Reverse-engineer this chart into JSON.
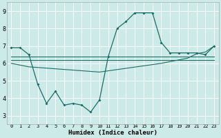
{
  "xlabel": "Humidex (Indice chaleur)",
  "xlim": [
    -0.5,
    23.5
  ],
  "ylim": [
    2.5,
    9.5
  ],
  "yticks": [
    3,
    4,
    5,
    6,
    7,
    8,
    9
  ],
  "xticks": [
    0,
    1,
    2,
    3,
    4,
    5,
    6,
    7,
    8,
    9,
    10,
    11,
    12,
    13,
    14,
    15,
    16,
    17,
    18,
    19,
    20,
    21,
    22,
    23
  ],
  "bg_color": "#cceae8",
  "grid_color": "#ffffff",
  "line_color": "#1a6b65",
  "series": [
    {
      "x": [
        0,
        1,
        2,
        3,
        4,
        5,
        6,
        7,
        8,
        9,
        10,
        11,
        12,
        13,
        14,
        15,
        16,
        17,
        18,
        19,
        20,
        21,
        22,
        23
      ],
      "y": [
        6.9,
        6.9,
        6.5,
        4.8,
        3.7,
        4.4,
        3.6,
        3.7,
        3.6,
        3.2,
        3.9,
        6.4,
        8.0,
        8.4,
        8.9,
        8.9,
        8.9,
        7.2,
        6.6,
        6.6,
        6.6,
        6.6,
        6.5,
        7.0
      ],
      "markers": true
    },
    {
      "x": [
        0,
        9,
        10,
        17,
        18,
        19,
        20,
        21,
        22,
        23
      ],
      "y": [
        6.4,
        6.4,
        6.4,
        6.4,
        6.4,
        6.4,
        6.4,
        6.4,
        6.4,
        6.4
      ],
      "markers": false
    },
    {
      "x": [
        0,
        9,
        10,
        17,
        18,
        19,
        20,
        21,
        22,
        23
      ],
      "y": [
        6.2,
        6.2,
        6.2,
        6.2,
        6.2,
        6.2,
        6.2,
        6.2,
        6.2,
        6.2
      ],
      "markers": false
    },
    {
      "x": [
        0,
        2,
        10,
        17,
        19,
        20,
        21,
        22,
        23
      ],
      "y": [
        6.0,
        5.8,
        5.5,
        6.0,
        6.2,
        6.3,
        6.55,
        6.65,
        7.0
      ],
      "markers": false
    }
  ]
}
